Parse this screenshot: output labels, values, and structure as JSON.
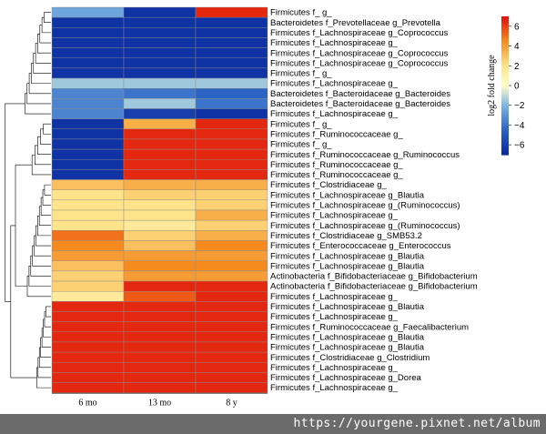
{
  "chart_data": {
    "type": "heatmap",
    "columns": [
      "6 mo",
      "13 mo",
      "8 y"
    ],
    "rows": [
      {
        "label": "Firmicutes f_ g_",
        "values": [
          -2.5,
          -6.5,
          6.5
        ]
      },
      {
        "label": "Bacteroidetes f_Prevotellaceae g_Prevotella",
        "values": [
          -6.5,
          -6.5,
          -6.5
        ]
      },
      {
        "label": "Firmicutes f_Lachnospiraceae g_Coprococcus",
        "values": [
          -6.5,
          -6.5,
          -6.5
        ]
      },
      {
        "label": "Firmicutes f_Lachnospiraceae g_",
        "values": [
          -6.5,
          -6.5,
          -6.5
        ]
      },
      {
        "label": "Firmicutes f_Lachnospiraceae g_Coprococcus",
        "values": [
          -6.5,
          -6.5,
          -6.5
        ]
      },
      {
        "label": "Firmicutes f_Lachnospiraceae g_Coprococcus",
        "values": [
          -6.5,
          -6.5,
          -6.5
        ]
      },
      {
        "label": "Firmicutes f_ g_",
        "values": [
          -6.5,
          -6.5,
          -6.5
        ]
      },
      {
        "label": "Firmicutes f_Lachnospiraceae g_",
        "values": [
          -1.5,
          -1.5,
          -1.5
        ]
      },
      {
        "label": "Bacteroidetes f_Bacteroidaceae g_Bacteroides",
        "values": [
          -3.5,
          -4.0,
          -4.5
        ]
      },
      {
        "label": "Bacteroidetes f_Bacteroidaceae g_Bacteroides",
        "values": [
          -3.5,
          -1.5,
          -4.0
        ]
      },
      {
        "label": "Firmicutes f_Lachnospiraceae g_",
        "values": [
          -3.5,
          -6.0,
          -6.5
        ]
      },
      {
        "label": "Firmicutes f_ g_",
        "values": [
          -6.5,
          3.5,
          6.5
        ]
      },
      {
        "label": "Firmicutes f_Ruminococcaceae g_",
        "values": [
          -6.5,
          6.5,
          6.5
        ]
      },
      {
        "label": "Firmicutes f_ g_",
        "values": [
          -6.5,
          6.5,
          6.5
        ]
      },
      {
        "label": "Firmicutes f_Ruminococcaceae g_Ruminococcus",
        "values": [
          -6.5,
          6.5,
          6.5
        ]
      },
      {
        "label": "Firmicutes f_Ruminococcaceae g_",
        "values": [
          -6.5,
          6.5,
          6.5
        ]
      },
      {
        "label": "Firmicutes f_Ruminococcaceae g_",
        "values": [
          -6.5,
          6.5,
          6.5
        ]
      },
      {
        "label": "Firmicutes f_Clostridiaceae g_",
        "values": [
          3.0,
          3.5,
          3.5
        ]
      },
      {
        "label": "Firmicutes f_Lachnospiraceae g_Blautia",
        "values": [
          2.0,
          2.5,
          2.5
        ]
      },
      {
        "label": "Firmicutes f_Lachnospiraceae g_(Ruminococcus)",
        "values": [
          2.0,
          2.0,
          2.5
        ]
      },
      {
        "label": "Firmicutes f_Lachnospiraceae g_",
        "values": [
          2.0,
          2.0,
          3.5
        ]
      },
      {
        "label": "Firmicutes f_Lachnospiraceae g_(Ruminococcus)",
        "values": [
          2.0,
          1.5,
          2.5
        ]
      },
      {
        "label": "Firmicutes f_Clostridiaceae g_SMB53.2",
        "values": [
          5.0,
          2.5,
          3.5
        ]
      },
      {
        "label": "Firmicutes f_Enterococcaceae g_Enterococcus",
        "values": [
          4.5,
          3.0,
          4.5
        ]
      },
      {
        "label": "Firmicutes f_Lachnospiraceae g_Blautia",
        "values": [
          4.0,
          4.0,
          4.0
        ]
      },
      {
        "label": "Firmicutes f_Lachnospiraceae g_Blautia",
        "values": [
          3.0,
          4.5,
          4.5
        ]
      },
      {
        "label": "Actinobacteria f_Bifidobacteriaceae g_Bifidobacterium",
        "values": [
          2.5,
          4.0,
          4.0
        ]
      },
      {
        "label": "Actinobacteria f_Bifidobacteriaceae g_Bifidobacterium",
        "values": [
          2.5,
          6.5,
          6.5
        ]
      },
      {
        "label": "Firmicutes f_Lachnospiraceae g_",
        "values": [
          1.5,
          5.5,
          6.5
        ]
      },
      {
        "label": "Firmicutes f_Lachnospiraceae g_Blautia",
        "values": [
          6.5,
          6.5,
          6.5
        ]
      },
      {
        "label": "Firmicutes f_Lachnospiraceae g_",
        "values": [
          6.5,
          6.5,
          6.5
        ]
      },
      {
        "label": "Firmicutes f_Ruminococcaceae g_Faecalibacterium",
        "values": [
          6.5,
          6.5,
          6.5
        ]
      },
      {
        "label": "Firmicutes f_Lachnospiraceae g_Blautia",
        "values": [
          6.5,
          6.5,
          6.5
        ]
      },
      {
        "label": "Firmicutes f_Lachnospiraceae g_Blautia",
        "values": [
          6.5,
          6.5,
          6.5
        ]
      },
      {
        "label": "Firmicutes f_Clostridiaceae g_Clostridium",
        "values": [
          6.5,
          6.5,
          6.5
        ]
      },
      {
        "label": "Firmicutes f_Lachnospiraceae g_",
        "values": [
          6.5,
          6.5,
          6.5
        ]
      },
      {
        "label": "Firmicutes f_Lachnospiraceae g_Dorea",
        "values": [
          6.5,
          6.5,
          6.5
        ]
      },
      {
        "label": "Firmicutes f_Lachnospiraceae g_",
        "values": [
          6.5,
          6.5,
          6.5
        ]
      }
    ],
    "color_scale": {
      "title": "log2 fold change",
      "range": [
        -7,
        7
      ],
      "ticks": [
        6,
        4,
        2,
        0,
        -2,
        -4,
        -6
      ],
      "colors": {
        "low": "#08279c",
        "mid": "#ffffc8",
        "high": "#e0100c"
      }
    },
    "dendrogram": "rows"
  },
  "watermark": "https://yourgene.pixnet.net/album"
}
